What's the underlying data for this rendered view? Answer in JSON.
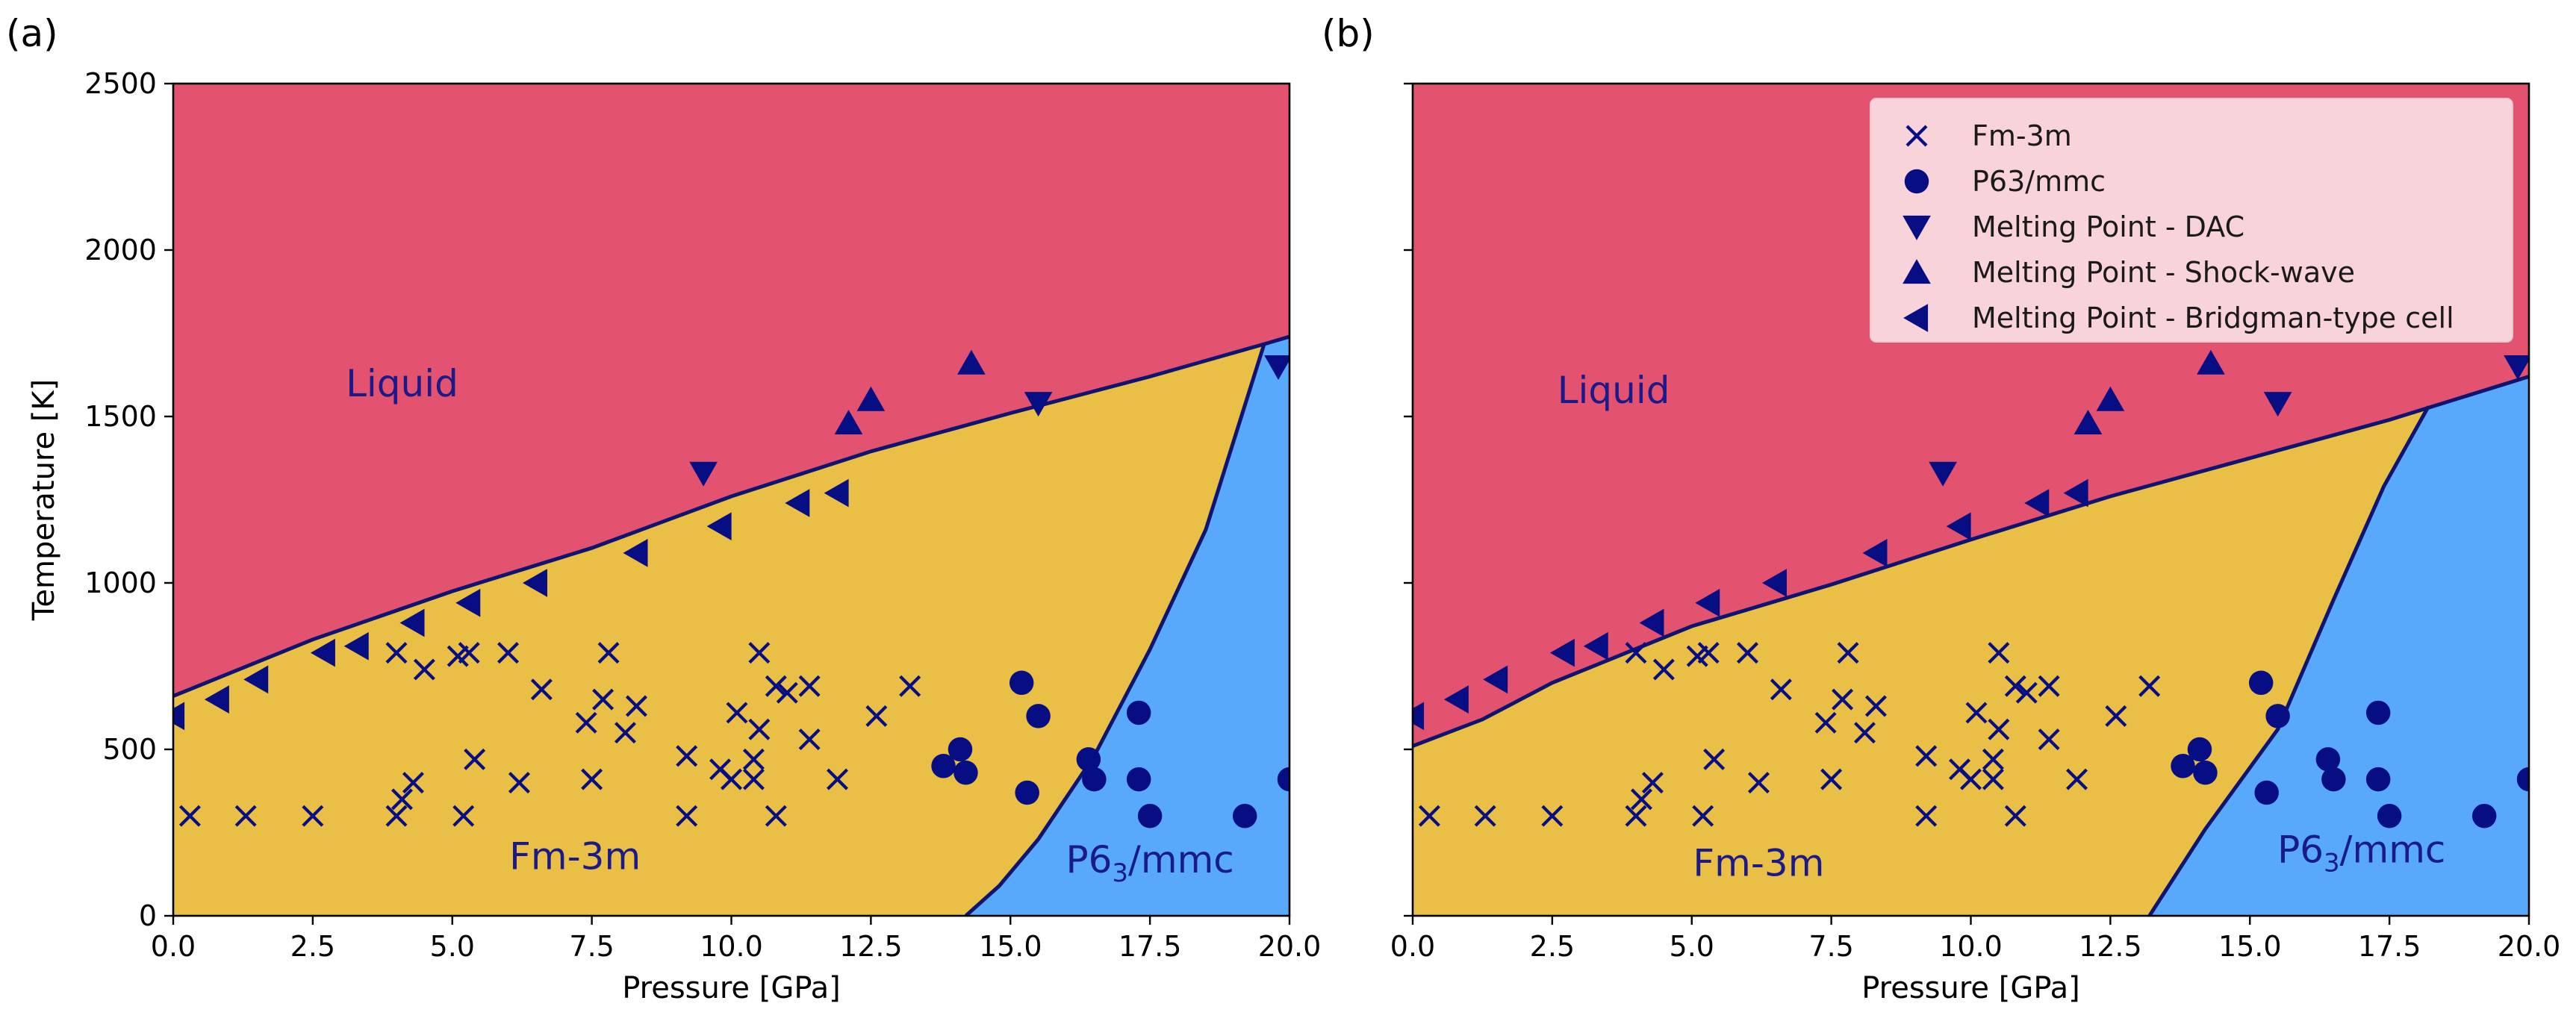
{
  "colors": {
    "liquid": "#e3536f",
    "fcc": "#e9bf45",
    "hcp": "#58a9fb",
    "line": "#0f1470",
    "marker": "#070e84",
    "legend_bg": "#fadadf",
    "legend_border": "#e4c8cd"
  },
  "chart_data": [
    {
      "type": "scatter",
      "panel_label": "(a)",
      "xlabel": "Pressure [GPa]",
      "ylabel": "Temperature [K]",
      "xlim": [
        0,
        20
      ],
      "ylim": [
        0,
        2500
      ],
      "xticks": [
        0.0,
        2.5,
        5.0,
        7.5,
        10.0,
        12.5,
        15.0,
        17.5,
        20.0
      ],
      "xtick_labels": [
        "0.0",
        "2.5",
        "5.0",
        "7.5",
        "10.0",
        "12.5",
        "15.0",
        "17.5",
        "20.0"
      ],
      "yticks": [
        0,
        500,
        1000,
        1500,
        2000,
        2500
      ],
      "ytick_labels": [
        "0",
        "500",
        "1000",
        "1500",
        "2000",
        "2500"
      ],
      "show_ytick_labels": true,
      "grid": false,
      "legend": null,
      "region_labels": [
        {
          "name": "Liquid",
          "x": 4.1,
          "y": 1560
        },
        {
          "name": "Fm-3m",
          "x": 7.2,
          "y": 140
        },
        {
          "name": "P6",
          "sub": "3",
          "suffix": "/mmc",
          "x": 17.5,
          "y": 130
        }
      ],
      "boundaries": {
        "melting": [
          [
            0,
            660
          ],
          [
            2.5,
            830
          ],
          [
            5,
            975
          ],
          [
            7.5,
            1105
          ],
          [
            10,
            1260
          ],
          [
            12.5,
            1395
          ],
          [
            15,
            1510
          ],
          [
            17.5,
            1620
          ],
          [
            19.6,
            1720
          ],
          [
            20,
            1740
          ]
        ],
        "fcc_hcp": [
          [
            14.2,
            0
          ],
          [
            14.8,
            90
          ],
          [
            15.5,
            230
          ],
          [
            16.5,
            480
          ],
          [
            17.5,
            800
          ],
          [
            18.5,
            1160
          ],
          [
            19.55,
            1720
          ]
        ]
      },
      "series": [
        {
          "name": "Fm-3m",
          "marker": "x",
          "points": [
            [
              0.3,
              300
            ],
            [
              1.3,
              300
            ],
            [
              2.5,
              300
            ],
            [
              4.0,
              300
            ],
            [
              4.1,
              350
            ],
            [
              4.3,
              400
            ],
            [
              5.2,
              300
            ],
            [
              5.4,
              470
            ],
            [
              6.2,
              400
            ],
            [
              7.5,
              410
            ],
            [
              7.4,
              580
            ],
            [
              7.7,
              650
            ],
            [
              7.8,
              790
            ],
            [
              8.1,
              550
            ],
            [
              8.3,
              630
            ],
            [
              9.2,
              300
            ],
            [
              9.2,
              480
            ],
            [
              9.8,
              440
            ],
            [
              10.0,
              410
            ],
            [
              10.1,
              610
            ],
            [
              10.4,
              470
            ],
            [
              10.4,
              410
            ],
            [
              10.5,
              560
            ],
            [
              10.5,
              790
            ],
            [
              10.8,
              690
            ],
            [
              10.8,
              300
            ],
            [
              11.0,
              670
            ],
            [
              11.4,
              530
            ],
            [
              11.4,
              690
            ],
            [
              11.9,
              410
            ],
            [
              12.6,
              600
            ],
            [
              13.2,
              690
            ],
            [
              4.0,
              790
            ],
            [
              4.5,
              740
            ],
            [
              5.1,
              780
            ],
            [
              5.3,
              790
            ],
            [
              6.0,
              790
            ],
            [
              6.6,
              680
            ]
          ]
        },
        {
          "name": "P63/mmc",
          "marker": "o",
          "points": [
            [
              13.8,
              450
            ],
            [
              14.1,
              500
            ],
            [
              14.2,
              430
            ],
            [
              15.2,
              700
            ],
            [
              15.3,
              370
            ],
            [
              15.5,
              600
            ],
            [
              16.4,
              470
            ],
            [
              16.5,
              410
            ],
            [
              17.3,
              610
            ],
            [
              17.3,
              410
            ],
            [
              17.5,
              300
            ],
            [
              19.2,
              300
            ],
            [
              20.0,
              410
            ]
          ]
        },
        {
          "name": "Melting Point - DAC",
          "marker": "v",
          "points": [
            [
              9.5,
              1330
            ],
            [
              15.5,
              1540
            ],
            [
              19.8,
              1650
            ]
          ]
        },
        {
          "name": "Melting Point - Shock-wave",
          "marker": "^",
          "points": [
            [
              12.1,
              1480
            ],
            [
              12.5,
              1550
            ],
            [
              14.3,
              1660
            ]
          ]
        },
        {
          "name": "Melting Point - Bridgman-type cell",
          "marker": "<",
          "points": [
            [
              0.0,
              600
            ],
            [
              0.8,
              650
            ],
            [
              1.5,
              710
            ],
            [
              2.7,
              790
            ],
            [
              3.3,
              810
            ],
            [
              4.3,
              880
            ],
            [
              5.3,
              940
            ],
            [
              6.5,
              1000
            ],
            [
              8.3,
              1090
            ],
            [
              9.8,
              1170
            ],
            [
              11.2,
              1240
            ],
            [
              11.9,
              1270
            ]
          ]
        }
      ]
    },
    {
      "type": "scatter",
      "panel_label": "(b)",
      "xlabel": "Pressure [GPa]",
      "ylabel": "",
      "xlim": [
        0,
        20
      ],
      "ylim": [
        0,
        2500
      ],
      "xticks": [
        0.0,
        2.5,
        5.0,
        7.5,
        10.0,
        12.5,
        15.0,
        17.5,
        20.0
      ],
      "xtick_labels": [
        "0.0",
        "2.5",
        "5.0",
        "7.5",
        "10.0",
        "12.5",
        "15.0",
        "17.5",
        "20.0"
      ],
      "yticks": [
        0,
        500,
        1000,
        1500,
        2000,
        2500
      ],
      "ytick_labels": [
        "0",
        "500",
        "1000",
        "1500",
        "2000",
        "2500"
      ],
      "show_ytick_labels": false,
      "grid": false,
      "legend": "top-right",
      "region_labels": [
        {
          "name": "Liquid",
          "x": 3.6,
          "y": 1540
        },
        {
          "name": "Fm-3m",
          "x": 6.2,
          "y": 120
        },
        {
          "name": "P6",
          "sub": "3",
          "suffix": "/mmc",
          "x": 17.0,
          "y": 160
        }
      ],
      "boundaries": {
        "melting": [
          [
            0,
            510
          ],
          [
            1.25,
            590
          ],
          [
            2.5,
            700
          ],
          [
            5,
            870
          ],
          [
            7.5,
            995
          ],
          [
            10,
            1130
          ],
          [
            12.5,
            1260
          ],
          [
            15,
            1375
          ],
          [
            17.5,
            1490
          ],
          [
            20,
            1620
          ]
        ],
        "fcc_hcp": [
          [
            13.2,
            0
          ],
          [
            14.2,
            260
          ],
          [
            15.5,
            560
          ],
          [
            16.5,
            950
          ],
          [
            17.4,
            1290
          ],
          [
            18.2,
            1530
          ]
        ]
      },
      "series": [
        {
          "name": "Fm-3m",
          "marker": "x",
          "points": [
            [
              0.3,
              300
            ],
            [
              1.3,
              300
            ],
            [
              2.5,
              300
            ],
            [
              4.0,
              300
            ],
            [
              4.1,
              350
            ],
            [
              4.3,
              400
            ],
            [
              5.2,
              300
            ],
            [
              5.4,
              470
            ],
            [
              6.2,
              400
            ],
            [
              7.5,
              410
            ],
            [
              7.4,
              580
            ],
            [
              7.7,
              650
            ],
            [
              7.8,
              790
            ],
            [
              8.1,
              550
            ],
            [
              8.3,
              630
            ],
            [
              9.2,
              300
            ],
            [
              9.2,
              480
            ],
            [
              9.8,
              440
            ],
            [
              10.0,
              410
            ],
            [
              10.1,
              610
            ],
            [
              10.4,
              470
            ],
            [
              10.4,
              410
            ],
            [
              10.5,
              560
            ],
            [
              10.5,
              790
            ],
            [
              10.8,
              690
            ],
            [
              10.8,
              300
            ],
            [
              11.0,
              670
            ],
            [
              11.4,
              530
            ],
            [
              11.4,
              690
            ],
            [
              11.9,
              410
            ],
            [
              12.6,
              600
            ],
            [
              13.2,
              690
            ],
            [
              4.0,
              790
            ],
            [
              4.5,
              740
            ],
            [
              5.1,
              780
            ],
            [
              5.3,
              790
            ],
            [
              6.0,
              790
            ],
            [
              6.6,
              680
            ]
          ]
        },
        {
          "name": "P63/mmc",
          "marker": "o",
          "points": [
            [
              13.8,
              450
            ],
            [
              14.1,
              500
            ],
            [
              14.2,
              430
            ],
            [
              15.2,
              700
            ],
            [
              15.3,
              370
            ],
            [
              15.5,
              600
            ],
            [
              16.4,
              470
            ],
            [
              16.5,
              410
            ],
            [
              17.3,
              610
            ],
            [
              17.3,
              410
            ],
            [
              17.5,
              300
            ],
            [
              19.2,
              300
            ],
            [
              20.0,
              410
            ]
          ]
        },
        {
          "name": "Melting Point - DAC",
          "marker": "v",
          "points": [
            [
              9.5,
              1330
            ],
            [
              15.5,
              1540
            ],
            [
              19.8,
              1650
            ]
          ]
        },
        {
          "name": "Melting Point - Shock-wave",
          "marker": "^",
          "points": [
            [
              12.1,
              1480
            ],
            [
              12.5,
              1550
            ],
            [
              14.3,
              1660
            ]
          ]
        },
        {
          "name": "Melting Point - Bridgman-type cell",
          "marker": "<",
          "points": [
            [
              0.0,
              600
            ],
            [
              0.8,
              650
            ],
            [
              1.5,
              710
            ],
            [
              2.7,
              790
            ],
            [
              3.3,
              810
            ],
            [
              4.3,
              880
            ],
            [
              5.3,
              940
            ],
            [
              6.5,
              1000
            ],
            [
              8.3,
              1090
            ],
            [
              9.8,
              1170
            ],
            [
              11.2,
              1240
            ],
            [
              11.9,
              1270
            ]
          ]
        }
      ]
    }
  ]
}
